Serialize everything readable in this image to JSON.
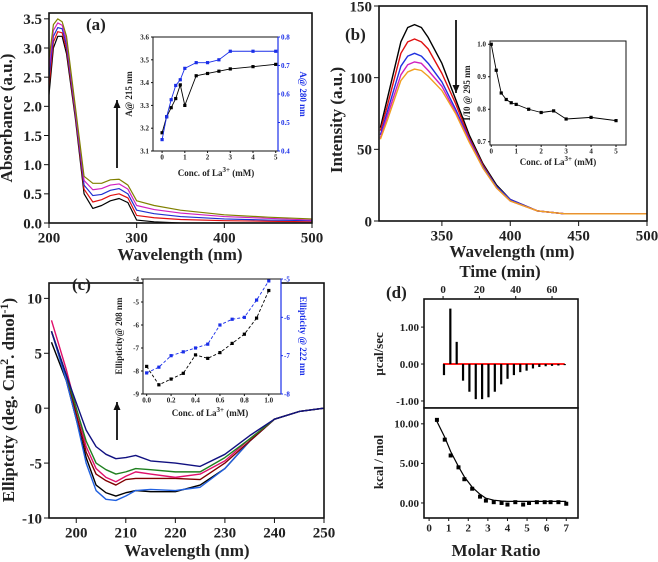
{
  "panels": {
    "a": {
      "label": "(a)",
      "xlabel": "Wavelength (nm)",
      "ylabel": "Absorbance (a.u.)"
    },
    "a_inset": {
      "ylabel": "A@ 215 nm",
      "y2label": "A@ 280 nm",
      "xlabel_pre": "Conc. of La",
      "xlabel_sup": "3+",
      "xlabel_post": " (mM)"
    },
    "b": {
      "label": "(b)",
      "xlabel": "Wavelength (nm)",
      "ylabel": "Intensity (a.u.)"
    },
    "b_inset": {
      "ylabel": "I/I0 @ 295 nm",
      "xlabel_pre": "Conc. of La",
      "xlabel_sup": "3+",
      "xlabel_post": " (mM)"
    },
    "c": {
      "label": "(c)",
      "xlabel": "Wavelength (nm)",
      "ylabel_pre": "Elliptcity (deg. Cm",
      "ylabel_sup1": "2",
      "ylabel_mid": ". dmol",
      "ylabel_sup2": "-1",
      "ylabel_post": ")"
    },
    "c_inset": {
      "ylabel": "Ellipticity@ 208 nm",
      "y2label": "Ellipticity @ 222 nm",
      "xlabel_pre": "Conc. of La",
      "xlabel_sup": "3+",
      "xlabel_post": " (mM)"
    },
    "d": {
      "label": "(d)",
      "top_xlabel": "Time (min)",
      "top_ylabel": "µcal/sec",
      "bottom_ylabel": "kcal / mol",
      "xlabel": "Molar Ratio"
    }
  },
  "chart_data": [
    {
      "id": "a",
      "type": "line",
      "xlabel": "Wavelength (nm)",
      "ylabel": "Absorbance (a.u.)",
      "xlim": [
        200,
        500
      ],
      "ylim": [
        0,
        3.6
      ],
      "xticks": [
        200,
        300,
        400,
        500
      ],
      "xtick_labels": [
        "200",
        "300",
        "400",
        "500"
      ],
      "yticks": [
        0,
        0.5,
        1,
        1.5,
        2,
        2.5,
        3,
        3.5
      ],
      "ytick_labels": [
        "0.0",
        "0.5",
        "1.0",
        "1.5",
        "2.0",
        "2.5",
        "3.0",
        "3.5"
      ],
      "annotation": "arrow-up",
      "x": [
        200,
        205,
        210,
        215,
        220,
        230,
        240,
        250,
        260,
        270,
        280,
        290,
        300,
        320,
        350,
        400,
        450,
        500
      ],
      "series": [
        {
          "color": "#000000",
          "values": [
            2.2,
            3.0,
            3.2,
            3.2,
            2.9,
            1.8,
            0.5,
            0.25,
            0.3,
            0.38,
            0.42,
            0.35,
            0.05,
            0.02,
            0.0,
            0,
            0,
            0
          ]
        },
        {
          "color": "#e01010",
          "values": [
            2.35,
            3.1,
            3.28,
            3.26,
            2.98,
            1.85,
            0.58,
            0.36,
            0.4,
            0.47,
            0.5,
            0.43,
            0.13,
            0.09,
            0.06,
            0.04,
            0.03,
            0.02
          ]
        },
        {
          "color": "#2030d0",
          "values": [
            2.5,
            3.2,
            3.35,
            3.33,
            3.05,
            1.9,
            0.65,
            0.47,
            0.49,
            0.56,
            0.59,
            0.5,
            0.22,
            0.16,
            0.11,
            0.07,
            0.05,
            0.04
          ]
        },
        {
          "color": "#d020c0",
          "values": [
            2.65,
            3.3,
            3.43,
            3.39,
            3.13,
            1.95,
            0.73,
            0.57,
            0.59,
            0.65,
            0.67,
            0.58,
            0.3,
            0.23,
            0.17,
            0.11,
            0.08,
            0.05
          ]
        },
        {
          "color": "#808000",
          "values": [
            2.8,
            3.4,
            3.5,
            3.45,
            3.2,
            2.0,
            0.8,
            0.68,
            0.68,
            0.74,
            0.75,
            0.65,
            0.38,
            0.3,
            0.22,
            0.14,
            0.1,
            0.07
          ]
        }
      ]
    },
    {
      "id": "a_inset",
      "type": "line",
      "xlabel": "Conc. of La3+ (mM)",
      "ylabel": "A@ 215 nm",
      "y2label": "A@ 280 nm",
      "xlim": [
        -0.4,
        5.1
      ],
      "ylim": [
        3.1,
        3.6
      ],
      "y2lim": [
        0.4,
        0.8
      ],
      "xticks": [
        0,
        1,
        2,
        3,
        4,
        5
      ],
      "xtick_labels": [
        "0",
        "1",
        "2",
        "3",
        "4",
        "5"
      ],
      "yticks": [
        3.1,
        3.2,
        3.3,
        3.4,
        3.5,
        3.6
      ],
      "ytick_labels": [
        "3.1",
        "3.2",
        "3.3",
        "3.4",
        "3.5",
        "3.6"
      ],
      "y2ticks": [
        0.4,
        0.5,
        0.6,
        0.7,
        0.8
      ],
      "y2tick_labels": [
        "0.4",
        "0.5",
        "0.6",
        "0.7",
        "0.8"
      ],
      "x": [
        0,
        0.2,
        0.4,
        0.6,
        0.8,
        1,
        1.5,
        2,
        2.5,
        3,
        4,
        5
      ],
      "series": [
        {
          "color": "#000000",
          "axis": "left",
          "markers": true,
          "values": [
            3.18,
            3.25,
            3.29,
            3.33,
            3.39,
            3.3,
            3.43,
            3.44,
            3.45,
            3.46,
            3.47,
            3.48
          ]
        },
        {
          "color": "#1a2ee8",
          "axis": "right",
          "markers": true,
          "values": [
            0.44,
            0.52,
            0.58,
            0.63,
            0.65,
            0.69,
            0.71,
            0.71,
            0.72,
            0.75,
            0.75,
            0.75
          ]
        }
      ]
    },
    {
      "id": "b",
      "type": "line",
      "xlabel": "Wavelength (nm)",
      "ylabel": "Intensity (a.u.)",
      "xlim": [
        304,
        500
      ],
      "ylim": [
        0,
        150
      ],
      "xticks": [
        350,
        400,
        450,
        500
      ],
      "xtick_labels": [
        "350",
        "400",
        "450",
        "500"
      ],
      "yticks": [
        0,
        50,
        100,
        150
      ],
      "ytick_labels": [
        "0",
        "50",
        "100",
        "150"
      ],
      "annotation": "arrow-down",
      "x": [
        305,
        310,
        320,
        325,
        330,
        335,
        340,
        350,
        360,
        370,
        380,
        390,
        400,
        420,
        440,
        460,
        500
      ],
      "series": [
        {
          "color": "#000000",
          "values": [
            65,
            85,
            125,
            135,
            137,
            135,
            128,
            110,
            85,
            60,
            40,
            25,
            15,
            7,
            5,
            5,
            5
          ]
        },
        {
          "color": "#e01010",
          "values": [
            63,
            80,
            117,
            125,
            127,
            125,
            120,
            103,
            82,
            58,
            39,
            24,
            15,
            7,
            5,
            5,
            5
          ]
        },
        {
          "color": "#2030e0",
          "values": [
            60,
            76,
            108,
            115,
            117,
            115,
            110,
            97,
            78,
            57,
            38,
            24,
            15,
            7,
            5,
            5,
            5
          ]
        },
        {
          "color": "#d020c0",
          "values": [
            58,
            73,
            102,
            109,
            111,
            110,
            105,
            94,
            76,
            56,
            37,
            23,
            14,
            7,
            5,
            5,
            5
          ]
        },
        {
          "color": "#f0a020",
          "values": [
            57,
            70,
            98,
            104,
            106,
            105,
            101,
            91,
            75,
            55,
            37,
            23,
            14,
            7,
            5,
            5,
            5
          ]
        }
      ]
    },
    {
      "id": "b_inset",
      "type": "line",
      "xlabel": "Conc. of La3+ (mM)",
      "ylabel": "I/I0 @ 295 nm",
      "xlim": [
        -0.05,
        5.4
      ],
      "ylim": [
        0.69,
        1.01
      ],
      "xticks": [
        0,
        1,
        2,
        3,
        4,
        5
      ],
      "xtick_labels": [
        "0",
        "1",
        "2",
        "3",
        "4",
        "5"
      ],
      "yticks": [
        0.7,
        0.8,
        0.9,
        1.0
      ],
      "ytick_labels": [
        "0.7",
        "0.8",
        "0.9",
        "1.0"
      ],
      "x": [
        0,
        0.2,
        0.4,
        0.6,
        0.8,
        1,
        1.5,
        2,
        2.5,
        3,
        4,
        5
      ],
      "series": [
        {
          "color": "#000000",
          "markers": true,
          "values": [
            1.0,
            0.92,
            0.85,
            0.83,
            0.82,
            0.815,
            0.8,
            0.79,
            0.795,
            0.77,
            0.775,
            0.765
          ]
        }
      ]
    },
    {
      "id": "c",
      "type": "line",
      "xlabel": "Wavelength (nm)",
      "ylabel": "Elliptcity (deg. Cm2. dmol-1)",
      "xlim": [
        194.5,
        250
      ],
      "ylim": [
        -10,
        11.4
      ],
      "xticks": [
        200,
        210,
        220,
        230,
        240,
        250
      ],
      "xtick_labels": [
        "200",
        "210",
        "220",
        "230",
        "240",
        "250"
      ],
      "yticks": [
        -10,
        -5,
        0,
        5,
        10
      ],
      "ytick_labels": [
        "-10",
        "-5",
        "0",
        "5",
        "10"
      ],
      "annotation": "arrow-up",
      "x": [
        195,
        198,
        200,
        202,
        204,
        206,
        208,
        210,
        212,
        215,
        220,
        225,
        230,
        235,
        240,
        245,
        250
      ],
      "series": [
        {
          "color": "#000000",
          "values": [
            6,
            2.5,
            -1,
            -4.5,
            -7,
            -7.7,
            -8,
            -7.7,
            -7.5,
            -7.6,
            -7.6,
            -7,
            -5.5,
            -3,
            -1,
            -0.3,
            0
          ]
        },
        {
          "color": "#2060e0",
          "values": [
            7,
            2.5,
            -1,
            -5,
            -7.5,
            -8.3,
            -8.4,
            -8,
            -7.5,
            -7.4,
            -7.5,
            -7.2,
            -5.5,
            -3,
            -1,
            -0.3,
            0
          ]
        },
        {
          "color": "#800000",
          "values": [
            7,
            3,
            -0.5,
            -4,
            -6,
            -6.6,
            -7,
            -6.5,
            -6.4,
            -6.4,
            -6.4,
            -6.5,
            -5,
            -3,
            -1,
            -0.3,
            0
          ]
        },
        {
          "color": "#e0106a",
          "values": [
            8,
            3.5,
            0,
            -3.5,
            -5.5,
            -6.3,
            -6.7,
            -6.2,
            -5.8,
            -6,
            -6.3,
            -6,
            -4.8,
            -2.8,
            -1,
            -0.3,
            0
          ]
        },
        {
          "color": "#208020",
          "values": [
            7,
            3,
            0,
            -3,
            -5,
            -5.6,
            -6,
            -5.8,
            -5.5,
            -5.6,
            -5.8,
            -5.8,
            -4.5,
            -2.8,
            -1,
            -0.3,
            0
          ]
        },
        {
          "color": "#101080",
          "values": [
            7,
            3,
            0.5,
            -2,
            -3.5,
            -4.2,
            -4.6,
            -4.5,
            -4.3,
            -4.8,
            -5,
            -5.3,
            -4.2,
            -2.5,
            -1,
            -0.3,
            0
          ]
        }
      ]
    },
    {
      "id": "c_inset",
      "type": "line",
      "xlabel": "Conc. of La3+ (mM)",
      "ylabel": "Ellipticity@ 208 nm",
      "y2label": "Ellipticity @ 222 nm",
      "xlim": [
        -0.03,
        1.1
      ],
      "ylim": [
        -9,
        -4
      ],
      "y2lim": [
        -8,
        -5
      ],
      "xticks": [
        0,
        0.2,
        0.4,
        0.6,
        0.8,
        1.0
      ],
      "xtick_labels": [
        "0.0",
        "0.2",
        "0.4",
        "0.6",
        "0.8",
        "1.0"
      ],
      "yticks": [
        -9,
        -8,
        -7,
        -6,
        -5,
        -4
      ],
      "ytick_labels": [
        "-9",
        "-8",
        "-7",
        "-6",
        "-5",
        "-4"
      ],
      "y2ticks": [
        -8,
        -7,
        -6,
        -5
      ],
      "y2tick_labels": [
        "-8",
        "-7",
        "-6",
        "-5"
      ],
      "x": [
        0,
        0.1,
        0.2,
        0.3,
        0.4,
        0.5,
        0.6,
        0.7,
        0.8,
        0.9,
        1.0
      ],
      "series": [
        {
          "color": "#000000",
          "axis": "left",
          "markers": true,
          "dashed": true,
          "values": [
            -7.8,
            -8.6,
            -8.35,
            -8.1,
            -7.3,
            -7.45,
            -7.2,
            -6.8,
            -6.4,
            -5.7,
            -4.5
          ]
        },
        {
          "color": "#1a2ee8",
          "axis": "right",
          "markers": true,
          "dashed": true,
          "values": [
            -7.45,
            -7.3,
            -7.0,
            -6.9,
            -6.8,
            -6.7,
            -6.2,
            -6.05,
            -6.0,
            -5.55,
            -5.05
          ]
        }
      ]
    },
    {
      "id": "d_top",
      "type": "stem",
      "xlabel": "Time (min)",
      "ylabel": "µcal/sec",
      "xlim": [
        -10.5,
        74.3
      ],
      "ylim": [
        -1.19,
        1.76
      ],
      "xaxis_position": "top",
      "xticks": [
        0,
        20,
        40,
        60
      ],
      "xtick_labels": [
        "0",
        "20",
        "40",
        "60"
      ],
      "yticks": [
        -1,
        0,
        1
      ],
      "ytick_labels": [
        "-1.00",
        "0.00",
        "1.00"
      ],
      "x": [
        0.5,
        4,
        7.5,
        11,
        14.5,
        18,
        21.5,
        25,
        28.5,
        32,
        35.5,
        39,
        42.5,
        46,
        49.5,
        53,
        56.5,
        60,
        63.5,
        67
      ],
      "series": [
        {
          "color": "#000000",
          "values": [
            -0.3,
            1.5,
            0.6,
            -0.45,
            -0.75,
            -0.95,
            -0.95,
            -0.9,
            -0.75,
            -0.55,
            -0.4,
            -0.3,
            -0.22,
            -0.18,
            -0.12,
            -0.08,
            -0.06,
            -0.05,
            -0.04,
            -0.03
          ]
        }
      ],
      "baseline": {
        "color": "#ff2020",
        "x": [
          0,
          67
        ],
        "values": [
          0,
          0
        ]
      }
    },
    {
      "id": "d_bottom",
      "type": "scatter",
      "xlabel": "Molar Ratio",
      "ylabel": "kcal / mol",
      "xlim": [
        -0.26,
        7.6
      ],
      "ylim": [
        -1.9,
        12
      ],
      "xticks": [
        0,
        1,
        2,
        3,
        4,
        5,
        6,
        7
      ],
      "xtick_labels": [
        "0",
        "1",
        "2",
        "3",
        "4",
        "5",
        "6",
        "7"
      ],
      "yticks": [
        0,
        5,
        10
      ],
      "ytick_labels": [
        "0.00",
        "5.00",
        "10.00"
      ],
      "x": [
        0.4,
        0.8,
        1.1,
        1.5,
        1.8,
        2.2,
        2.6,
        2.9,
        3.3,
        3.7,
        4.0,
        4.4,
        4.8,
        5.1,
        5.5,
        5.9,
        6.2,
        6.6,
        7.0
      ],
      "series": [
        {
          "color": "#000000",
          "markers": true,
          "noline": true,
          "values": [
            10.5,
            8,
            6,
            4.5,
            3,
            1.8,
            0.8,
            0.3,
            0.1,
            0.0,
            -0.2,
            0.1,
            -0.2,
            0.0,
            0.1,
            0.1,
            0.1,
            0.1,
            -0.1
          ]
        },
        {
          "color": "#000000",
          "values": [
            10.3,
            8.3,
            6.5,
            4.6,
            3.3,
            2.0,
            1.1,
            0.6,
            0.35,
            0.25,
            0.2,
            0.2,
            0.2,
            0.2,
            0.2,
            0.2,
            0.2,
            0.2,
            0.2
          ]
        }
      ]
    }
  ]
}
